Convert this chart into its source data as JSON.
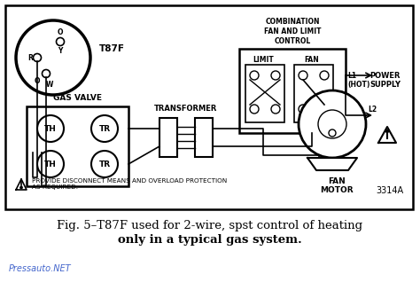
{
  "background_color": "#ffffff",
  "line_color": "#000000",
  "title_line1": "Fig. 5–T87F used for 2-wire, spst control of heating",
  "title_line2": "only in a typical gas system.",
  "watermark": "Pressauto.NET",
  "watermark_color": "#4466cc",
  "diagram_number": "3314A",
  "labels": {
    "t87f": "T87F",
    "gas_valve": "GAS VALVE",
    "transformer": "TRANSFORMER",
    "combination": "COMBINATION\nFAN AND LIMIT\nCONTROL",
    "limit": "LIMIT",
    "fan": "FAN",
    "l1_hot": "L1\n(HOT)",
    "l2": "L2",
    "power_supply": "POWER\nSUPPLY",
    "fan_motor": "FAN\nMOTOR",
    "warning": "PROVIDE DISCONNECT MEANS AND OVERLOAD PROTECTION\nAS REQUIRED.",
    "th": "TH",
    "tr": "TR",
    "r": "R",
    "y": "Y",
    "o": "O",
    "w": "W"
  }
}
